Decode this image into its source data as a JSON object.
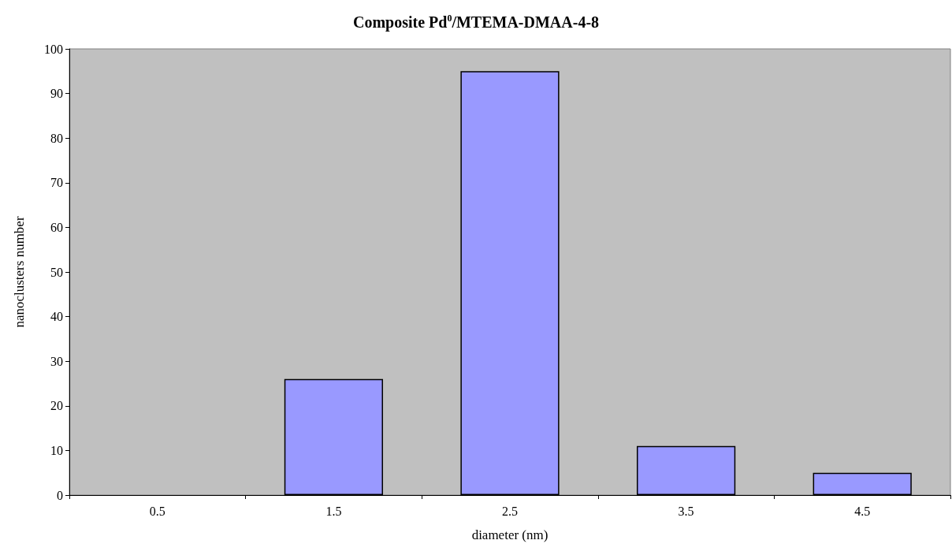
{
  "chart_data": {
    "type": "bar",
    "title": "Composite Pd$^{0}$/MTEMA-DMAA-4-8",
    "xlabel": "diameter (nm)",
    "ylabel": "nanoclusters number",
    "categories": [
      "0.5",
      "1.5",
      "2.5",
      "3.5",
      "4.5"
    ],
    "values": [
      0,
      26,
      95,
      11,
      5
    ],
    "color": "#9999ff",
    "ylim": [
      0,
      100
    ],
    "yticks": [
      0,
      10,
      20,
      30,
      40,
      50,
      60,
      70,
      80,
      90,
      100
    ],
    "grid": false
  }
}
